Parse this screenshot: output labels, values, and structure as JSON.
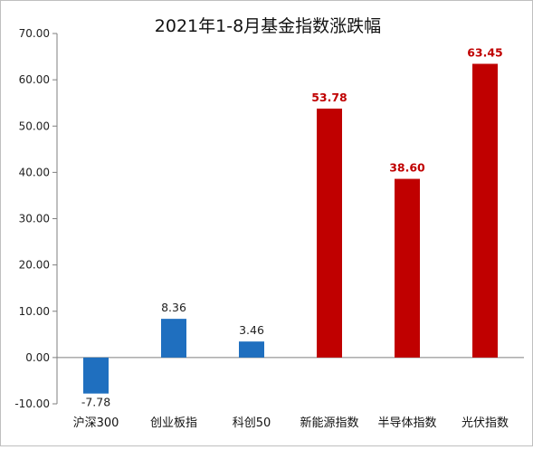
{
  "chart_data": {
    "type": "bar",
    "title": "2021年1-8月基金指数涨跌幅",
    "xlabel": "",
    "ylabel": "",
    "ylim": [
      -10,
      70
    ],
    "yticks": [
      "-10.00",
      "0.00",
      "10.00",
      "20.00",
      "30.00",
      "40.00",
      "50.00",
      "60.00",
      "70.00"
    ],
    "categories": [
      "沪深300",
      "创业板指",
      "科创50",
      "新能源指数",
      "半导体指数",
      "光伏指数"
    ],
    "values": [
      -7.78,
      8.36,
      3.46,
      53.78,
      38.6,
      63.45
    ],
    "value_labels": [
      "-7.78",
      "8.36",
      "3.46",
      "53.78",
      "38.60",
      "63.45"
    ],
    "bar_colors": [
      "#1f6fbf",
      "#1f6fbf",
      "#1f6fbf",
      "#c00000",
      "#c00000",
      "#c00000"
    ],
    "label_colors": [
      "#222222",
      "#222222",
      "#222222",
      "#c00000",
      "#c00000",
      "#c00000"
    ],
    "grid": false,
    "legend": "none"
  }
}
